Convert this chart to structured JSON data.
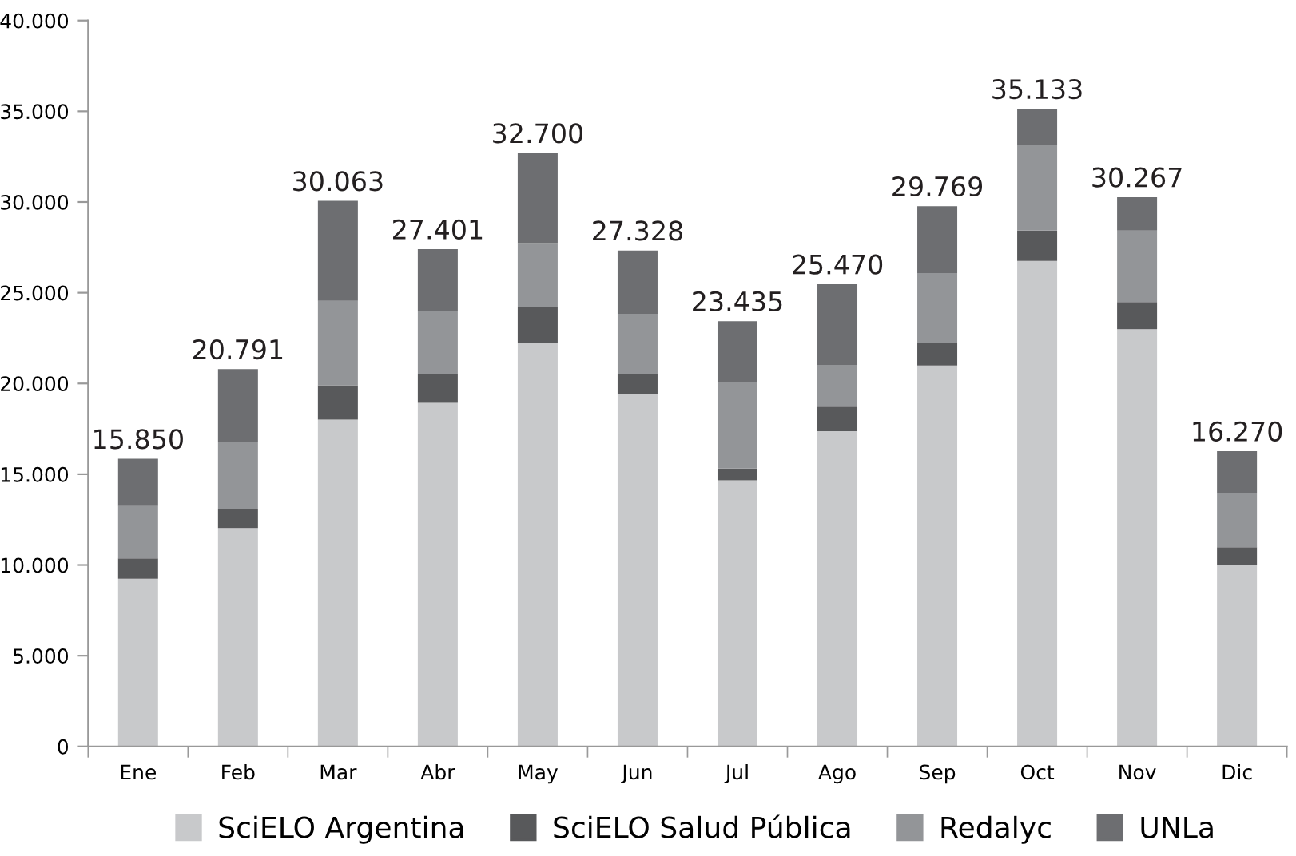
{
  "chart_data": {
    "type": "bar",
    "stacked": true,
    "categories": [
      "Ene",
      "Feb",
      "Mar",
      "Abr",
      "May",
      "Jun",
      "Jul",
      "Ago",
      "Sep",
      "Oct",
      "Nov",
      "Dic"
    ],
    "series": [
      {
        "name": "SciELO Argentina",
        "color": "#c8c9cb",
        "values": [
          9240,
          12040,
          18010,
          18930,
          22220,
          19400,
          14660,
          17370,
          20990,
          26750,
          22990,
          10010
        ]
      },
      {
        "name": "SciELO Salud Pública",
        "color": "#58595b",
        "values": [
          1120,
          1060,
          1890,
          1580,
          1970,
          1110,
          650,
          1350,
          1260,
          1680,
          1500,
          970
        ]
      },
      {
        "name": "Redalyc",
        "color": "#939598",
        "values": [
          2890,
          3680,
          4650,
          3510,
          3540,
          3330,
          4760,
          2300,
          3830,
          4740,
          3940,
          2970
        ]
      },
      {
        "name": "UNLa",
        "color": "#6d6e71",
        "values": [
          2600,
          4011,
          5513,
          3381,
          4970,
          3488,
          3365,
          4450,
          3689,
          1963,
          1837,
          2320
        ]
      }
    ],
    "totals": [
      "15.850",
      "20.791",
      "30.063",
      "27.401",
      "32.700",
      "27.328",
      "23.435",
      "25.470",
      "29.769",
      "35.133",
      "30.267",
      "16.270"
    ],
    "ylim": [
      0,
      40000
    ],
    "yticks": [
      {
        "value": 0,
        "label": "0"
      },
      {
        "value": 5000,
        "label": "5.000"
      },
      {
        "value": 10000,
        "label": "10.000"
      },
      {
        "value": 15000,
        "label": "15.000"
      },
      {
        "value": 20000,
        "label": "20.000"
      },
      {
        "value": 25000,
        "label": "25.000"
      },
      {
        "value": 30000,
        "label": "30.000"
      },
      {
        "value": 35000,
        "label": "35.000"
      },
      {
        "value": 40000,
        "label": "40.000"
      }
    ],
    "grid": false,
    "legend": "bottom"
  }
}
